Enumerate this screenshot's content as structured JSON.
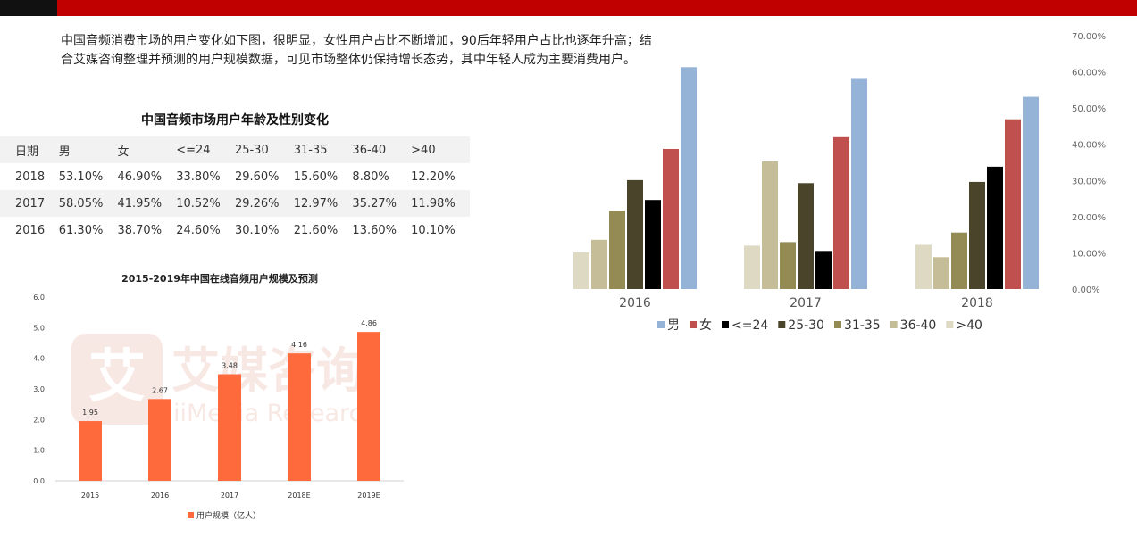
{
  "intro_text": "中国音频消费市场的用户变化如下图，很明显，女性用户占比不断增加，90后年轻用户占比也逐年升高；结合艾媒咨询整理并预测的用户规模数据，可见市场整体仍保持增长态势，其中年轻人成为主要消费用户。",
  "table": {
    "title": "中国音频市场用户年龄及性别变化",
    "headers": [
      "日期",
      "男",
      "女",
      "<=24",
      "25-30",
      "31-35",
      "36-40",
      ">40"
    ],
    "rows": [
      [
        "2018",
        "53.10%",
        "46.90%",
        "33.80%",
        "29.60%",
        "15.60%",
        "8.80%",
        "12.20%"
      ],
      [
        "2017",
        "58.05%",
        "41.95%",
        "10.52%",
        "29.26%",
        "12.97%",
        "35.27%",
        "11.98%"
      ],
      [
        "2016",
        "61.30%",
        "38.70%",
        "24.60%",
        "30.10%",
        "21.60%",
        "13.60%",
        "10.10%"
      ]
    ]
  },
  "colors": {
    "topbar_black": "#111111",
    "topbar_red": "#c00000",
    "bar_orange": "#ff6a3d",
    "watermark": "#f3d6cf"
  },
  "watermark": {
    "logo_char": "艾",
    "cn": "艾媒咨询",
    "en": "iiMedia Research"
  },
  "chart_data": [
    {
      "type": "bar",
      "title": "2015-2019年中国在线音频用户规模及预测",
      "categories": [
        "2015",
        "2016",
        "2017",
        "2018E",
        "2019E"
      ],
      "series": [
        {
          "name": "用户规模（亿人）",
          "values": [
            1.95,
            2.67,
            3.48,
            4.16,
            4.86
          ]
        }
      ],
      "data_labels": [
        "1.95",
        "2.67",
        "3.48",
        "4.16",
        "4.86"
      ],
      "ylim": [
        0,
        6
      ],
      "yticks": [
        0,
        1,
        2,
        3,
        4,
        5,
        6
      ],
      "ytick_labels": [
        "0.0",
        "1.0",
        "2.0",
        "3.0",
        "4.0",
        "5.0",
        "6.0"
      ],
      "legend_position": "bottom",
      "grid": false,
      "colors": [
        "#ff6a3d"
      ]
    },
    {
      "type": "bar",
      "categories": [
        "2016",
        "2017",
        "2018"
      ],
      "series": [
        {
          "name": ">40",
          "values": [
            10.1,
            11.98,
            12.2
          ],
          "color": "#ddd9c3"
        },
        {
          "name": "36-40",
          "values": [
            13.6,
            35.27,
            8.8
          ],
          "color": "#c4bd97"
        },
        {
          "name": "31-35",
          "values": [
            21.6,
            12.97,
            15.6
          ],
          "color": "#948a54"
        },
        {
          "name": "25-30",
          "values": [
            30.1,
            29.26,
            29.6
          ],
          "color": "#4a452a"
        },
        {
          "name": "<=24",
          "values": [
            24.6,
            10.52,
            33.8
          ],
          "color": "#000000"
        },
        {
          "name": "女",
          "values": [
            38.7,
            41.95,
            46.9
          ],
          "color": "#c0504d"
        },
        {
          "name": "男",
          "values": [
            61.3,
            58.05,
            53.1
          ],
          "color": "#95b3d7"
        }
      ],
      "legend": [
        "男",
        "女",
        "<=24",
        "25-30",
        "31-35",
        "36-40",
        ">40"
      ],
      "legend_position": "bottom",
      "ylim": [
        0,
        70
      ],
      "yticks": [
        0,
        10,
        20,
        30,
        40,
        50,
        60,
        70
      ],
      "ytick_labels": [
        "0.00%",
        "10.00%",
        "20.00%",
        "30.00%",
        "40.00%",
        "50.00%",
        "60.00%",
        "70.00%"
      ],
      "y_axis_side": "right",
      "grid": false
    }
  ]
}
